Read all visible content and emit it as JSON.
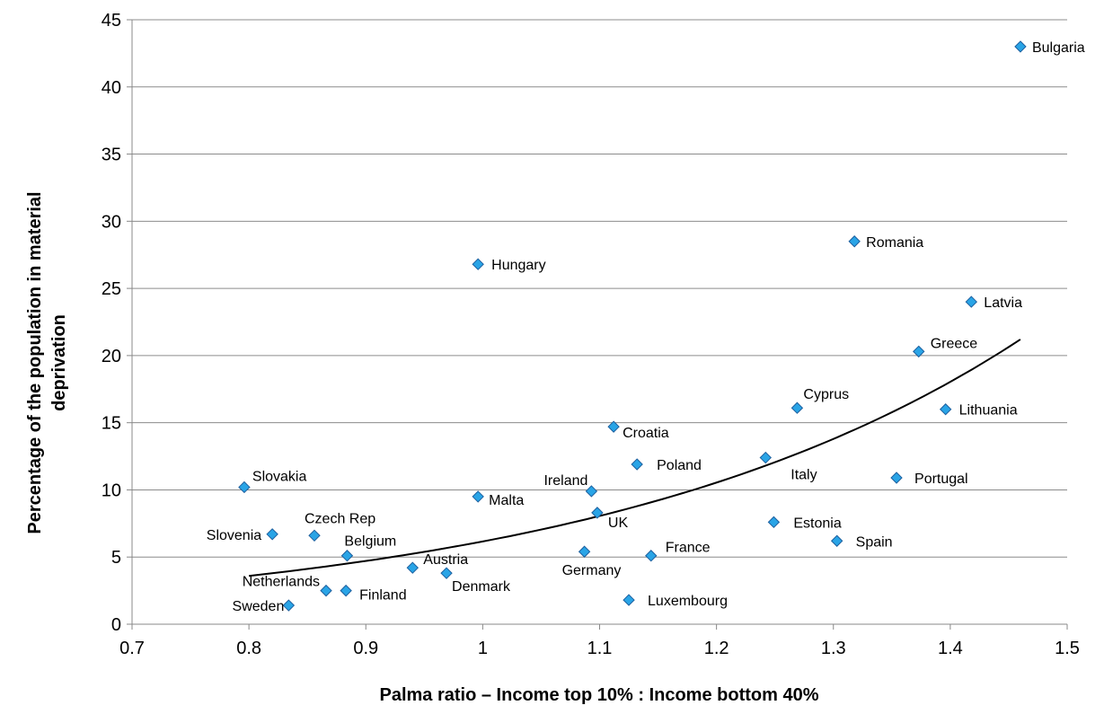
{
  "chart_data": {
    "type": "scatter",
    "title": "",
    "xlabel": "Palma ratio – Income top 10% : Income bottom 40%",
    "ylabel_line1": "Percentage of the population in material",
    "ylabel_line2": "deprivation",
    "xlim": [
      0.7,
      1.5
    ],
    "ylim": [
      0,
      45
    ],
    "xticks": [
      0.7,
      0.8,
      0.9,
      1,
      1.1,
      1.2,
      1.3,
      1.4,
      1.5
    ],
    "xtick_labels": [
      "0.7",
      "0.8",
      "0.9",
      "1",
      "1.1",
      "1.2",
      "1.3",
      "1.4",
      "1.5"
    ],
    "yticks": [
      0,
      5,
      10,
      15,
      20,
      25,
      30,
      35,
      40,
      45
    ],
    "ytick_labels": [
      "0",
      "5",
      "10",
      "15",
      "20",
      "25",
      "30",
      "35",
      "40",
      "45"
    ],
    "grid": "horizontal",
    "legend": "none",
    "marker_color": "#29a4e6",
    "marker_stroke": "#1d5f9e",
    "trendline": {
      "type": "exponential",
      "x_range": [
        0.8,
        1.46
      ],
      "y_start": 3.6,
      "y_end": 21.2
    },
    "points": [
      {
        "label": "Bulgaria",
        "x": 1.46,
        "y": 43.0
      },
      {
        "label": "Romania",
        "x": 1.318,
        "y": 28.5
      },
      {
        "label": "Hungary",
        "x": 0.996,
        "y": 26.8
      },
      {
        "label": "Latvia",
        "x": 1.418,
        "y": 24.0
      },
      {
        "label": "Greece",
        "x": 1.373,
        "y": 20.3
      },
      {
        "label": "Cyprus",
        "x": 1.269,
        "y": 16.1
      },
      {
        "label": "Lithuania",
        "x": 1.396,
        "y": 16.0
      },
      {
        "label": "Croatia",
        "x": 1.112,
        "y": 14.7
      },
      {
        "label": "Italy",
        "x": 1.242,
        "y": 12.4
      },
      {
        "label": "Poland",
        "x": 1.132,
        "y": 11.9
      },
      {
        "label": "Portugal",
        "x": 1.354,
        "y": 10.9
      },
      {
        "label": "Slovakia",
        "x": 0.796,
        "y": 10.2
      },
      {
        "label": "Ireland",
        "x": 1.093,
        "y": 9.9
      },
      {
        "label": "Malta",
        "x": 0.996,
        "y": 9.5
      },
      {
        "label": "UK",
        "x": 1.098,
        "y": 8.3
      },
      {
        "label": "Estonia",
        "x": 1.249,
        "y": 7.6
      },
      {
        "label": "Slovenia",
        "x": 0.82,
        "y": 6.7
      },
      {
        "label": "Czech Rep",
        "x": 0.856,
        "y": 6.6
      },
      {
        "label": "Spain",
        "x": 1.303,
        "y": 6.2
      },
      {
        "label": "Germany",
        "x": 1.087,
        "y": 5.4
      },
      {
        "label": "Belgium",
        "x": 0.884,
        "y": 5.1
      },
      {
        "label": "France",
        "x": 1.144,
        "y": 5.1
      },
      {
        "label": "Austria",
        "x": 0.94,
        "y": 4.2
      },
      {
        "label": "Denmark",
        "x": 0.969,
        "y": 3.8
      },
      {
        "label": "Netherlands",
        "x": 0.866,
        "y": 2.5
      },
      {
        "label": "Finland",
        "x": 0.883,
        "y": 2.5
      },
      {
        "label": "Luxembourg",
        "x": 1.125,
        "y": 1.8
      },
      {
        "label": "Sweden",
        "x": 0.834,
        "y": 1.4
      }
    ]
  }
}
